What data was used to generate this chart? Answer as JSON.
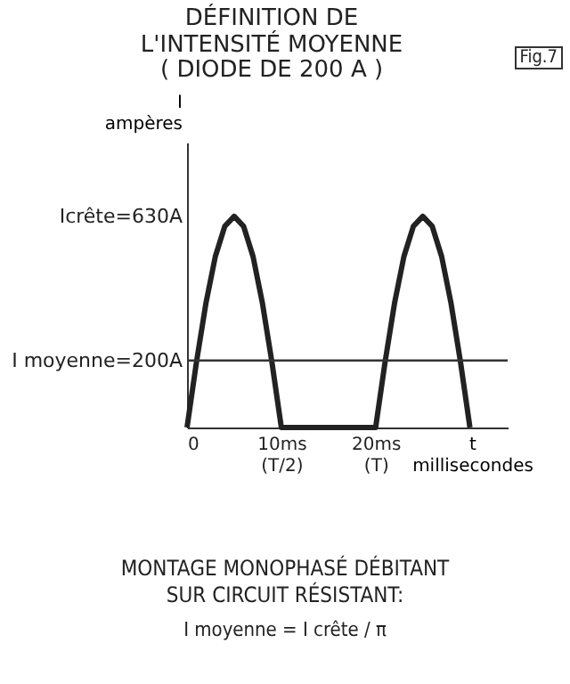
{
  "chart_data": {
    "type": "line",
    "title": "DÉFINITION DE L'INTENSITÉ MOYENNE",
    "subtitle": "( DIODE DE 200 A )",
    "xlabel": "t millisecondes",
    "ylabel": "I ampères",
    "x": [
      0,
      1,
      2,
      3,
      4,
      5,
      6,
      7,
      8,
      9,
      10,
      20,
      21,
      22,
      23,
      24,
      25,
      26,
      27,
      28,
      29,
      30
    ],
    "series": [
      {
        "color": "#222222",
        "values": [
          0,
          195,
          370,
          510,
          600,
          630,
          600,
          510,
          370,
          195,
          0,
          0,
          195,
          370,
          510,
          600,
          630,
          600,
          510,
          370,
          195,
          0
        ]
      }
    ],
    "xlim": [
      0,
      34
    ],
    "xticks": [
      0,
      {
        "value": 10,
        "label": "10ms (T/2)"
      },
      {
        "value": 20,
        "label": "20ms (T)"
      }
    ],
    "ylim": [
      0,
      850
    ],
    "yticks": [
      {
        "value": 200,
        "label": "I moyenne=200A"
      },
      {
        "value": 630,
        "label": "Icrête=630A"
      }
    ],
    "ref_lines": [
      {
        "axis": "y",
        "value": 200,
        "color": "#333333"
      }
    ],
    "grid": false,
    "annotations": [
      "Fig.7",
      "MONTAGE MONOPHASÉ DÉBITANT SUR CIRCUIT RÉSISTANT:",
      "I moyenne = I crête / π"
    ]
  }
}
